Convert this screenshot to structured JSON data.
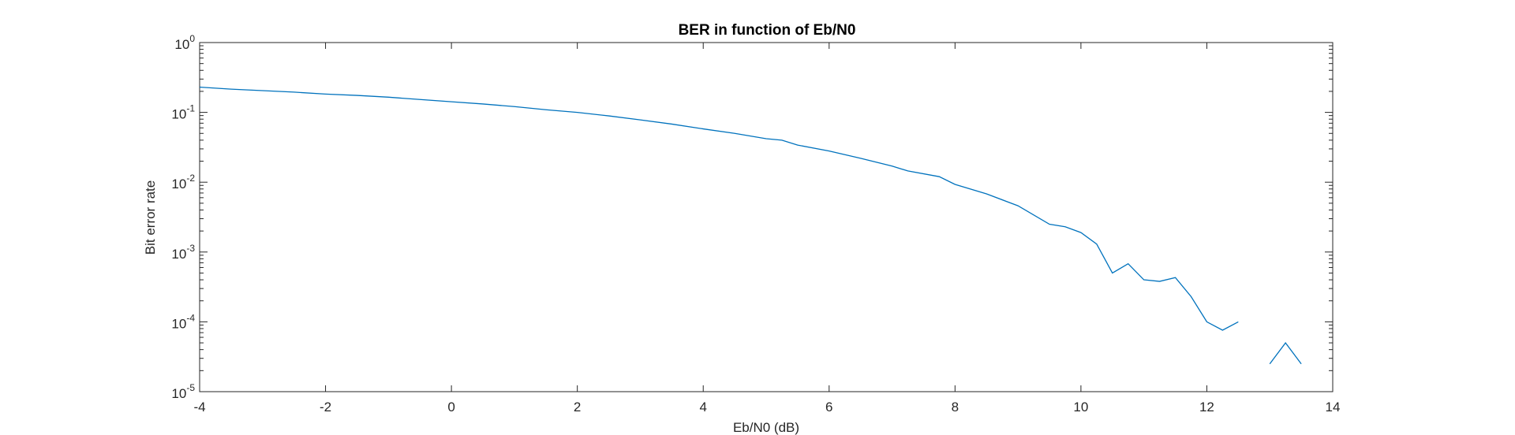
{
  "chart_data": {
    "type": "line",
    "title": "BER in function of Eb/N0",
    "xlabel": "Eb/N0 (dB)",
    "ylabel": "Bit error rate",
    "xlim": [
      -4,
      14
    ],
    "ylim": [
      1e-05,
      1
    ],
    "yscale": "log",
    "xticks": [
      -4,
      -2,
      0,
      2,
      4,
      6,
      8,
      10,
      12,
      14
    ],
    "xtick_labels": [
      "-4",
      "-2",
      "0",
      "2",
      "4",
      "6",
      "8",
      "10",
      "12",
      "14"
    ],
    "ytick_labels": [
      {
        "base": "10",
        "exp": "0"
      },
      {
        "base": "10",
        "exp": "-1"
      },
      {
        "base": "10",
        "exp": "-2"
      },
      {
        "base": "10",
        "exp": "-3"
      },
      {
        "base": "10",
        "exp": "-4"
      },
      {
        "base": "10",
        "exp": "-5"
      }
    ],
    "grid": false,
    "legend": false,
    "box": true,
    "line_color": "#0072BD",
    "series": [
      {
        "values": [
          {
            "x": -4.0,
            "y": 0.23
          },
          {
            "x": -3.5,
            "y": 0.215
          },
          {
            "x": -3.0,
            "y": 0.205
          },
          {
            "x": -2.5,
            "y": 0.195
          },
          {
            "x": -2.0,
            "y": 0.183
          },
          {
            "x": -1.5,
            "y": 0.175
          },
          {
            "x": -1.0,
            "y": 0.165
          },
          {
            "x": -0.5,
            "y": 0.153
          },
          {
            "x": 0.0,
            "y": 0.142
          },
          {
            "x": 0.5,
            "y": 0.132
          },
          {
            "x": 1.0,
            "y": 0.121
          },
          {
            "x": 1.5,
            "y": 0.109
          },
          {
            "x": 2.0,
            "y": 0.1
          },
          {
            "x": 2.5,
            "y": 0.089
          },
          {
            "x": 3.0,
            "y": 0.078
          },
          {
            "x": 3.5,
            "y": 0.068
          },
          {
            "x": 4.0,
            "y": 0.058
          },
          {
            "x": 4.5,
            "y": 0.05
          },
          {
            "x": 5.0,
            "y": 0.042
          },
          {
            "x": 5.25,
            "y": 0.04
          },
          {
            "x": 5.5,
            "y": 0.034
          },
          {
            "x": 6.0,
            "y": 0.028
          },
          {
            "x": 6.5,
            "y": 0.022
          },
          {
            "x": 7.0,
            "y": 0.017
          },
          {
            "x": 7.25,
            "y": 0.0145
          },
          {
            "x": 7.75,
            "y": 0.012
          },
          {
            "x": 8.0,
            "y": 0.0093
          },
          {
            "x": 8.5,
            "y": 0.0068
          },
          {
            "x": 9.0,
            "y": 0.0046
          },
          {
            "x": 9.5,
            "y": 0.0025
          },
          {
            "x": 9.75,
            "y": 0.0023
          },
          {
            "x": 10.0,
            "y": 0.0019
          },
          {
            "x": 10.25,
            "y": 0.0013
          },
          {
            "x": 10.5,
            "y": 0.0005
          },
          {
            "x": 10.75,
            "y": 0.00068
          },
          {
            "x": 11.0,
            "y": 0.0004
          },
          {
            "x": 11.25,
            "y": 0.00038
          },
          {
            "x": 11.5,
            "y": 0.00043
          },
          {
            "x": 11.75,
            "y": 0.00023
          },
          {
            "x": 12.0,
            "y": 0.0001
          },
          {
            "x": 12.25,
            "y": 7.6e-05
          },
          {
            "x": 12.5,
            "y": 0.0001
          },
          {
            "x": 12.75,
            "y": null
          },
          {
            "x": 13.0,
            "y": 2.5e-05
          },
          {
            "x": 13.25,
            "y": 5e-05
          },
          {
            "x": 13.5,
            "y": 2.5e-05
          }
        ]
      }
    ]
  }
}
